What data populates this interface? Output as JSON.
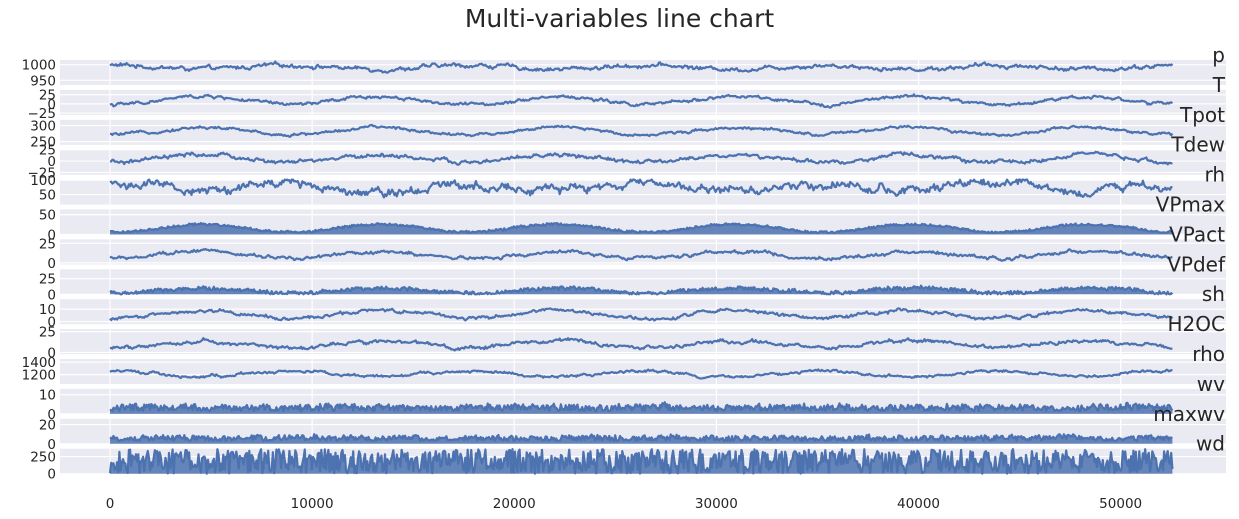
{
  "chart_data": {
    "type": "line",
    "title": "Multi-variables line chart",
    "line_color": "#4c72b0",
    "panel_color": "#eaeaf2",
    "grid": true,
    "xlim": [
      0,
      52560
    ],
    "x_ticks": [
      0,
      10000,
      20000,
      30000,
      40000,
      50000
    ],
    "n_points": 52560,
    "panels": [
      {
        "name": "p",
        "ylim": [
          935,
          1015
        ],
        "y_ticks": [
          1000,
          950
        ],
        "base": 992,
        "amp_seasonal": -6,
        "noise": 6,
        "fill": false
      },
      {
        "name": "T",
        "ylim": [
          -30,
          38
        ],
        "y_ticks": [
          25,
          0,
          -25
        ],
        "base": 9,
        "amp_seasonal": 11,
        "noise": 4,
        "fill": false
      },
      {
        "name": "Tpot",
        "ylim": [
          240,
          318
        ],
        "y_ticks": [
          300,
          250
        ],
        "base": 283,
        "amp_seasonal": 11,
        "noise": 4,
        "fill": false
      },
      {
        "name": "Tdew",
        "ylim": [
          -30,
          25
        ],
        "y_ticks": [
          25,
          0,
          -25
        ],
        "base": 5,
        "amp_seasonal": 8,
        "noise": 4,
        "fill": false
      },
      {
        "name": "rh",
        "ylim": [
          15,
          102
        ],
        "y_ticks": [
          100,
          50
        ],
        "base": 76,
        "amp_seasonal": -12,
        "noise": 14,
        "fill": false
      },
      {
        "name": "VPmax",
        "ylim": [
          0,
          63
        ],
        "y_ticks": [
          50,
          0
        ],
        "base": 13,
        "amp_seasonal": 10,
        "noise": 4,
        "fill": true
      },
      {
        "name": "VPact",
        "ylim": [
          -2,
          30
        ],
        "y_ticks": [
          25,
          0
        ],
        "base": 10,
        "amp_seasonal": 4,
        "noise": 2,
        "fill": false
      },
      {
        "name": "VPdef",
        "ylim": [
          0,
          40
        ],
        "y_ticks": [
          25,
          0
        ],
        "base": 3,
        "amp_seasonal": 4,
        "noise": 4,
        "fill": true
      },
      {
        "name": "sh",
        "ylim": [
          -2,
          18
        ],
        "y_ticks": [
          10,
          0
        ],
        "base": 6,
        "amp_seasonal": 3,
        "noise": 1.2,
        "fill": false
      },
      {
        "name": "H2OC",
        "ylim": [
          -2,
          28
        ],
        "y_ticks": [
          25,
          0
        ],
        "base": 10,
        "amp_seasonal": 4,
        "noise": 2,
        "fill": false
      },
      {
        "name": "rho",
        "ylim": [
          1050,
          1450
        ],
        "y_ticks": [
          1400,
          1200
        ],
        "base": 1215,
        "amp_seasonal": -45,
        "noise": 20,
        "fill": false
      },
      {
        "name": "wv",
        "ylim": [
          0,
          13
        ],
        "y_ticks": [
          10,
          0
        ],
        "base": 1.5,
        "amp_seasonal": 0,
        "noise": 2.5,
        "fill": true
      },
      {
        "name": "maxwv",
        "ylim": [
          0,
          26
        ],
        "y_ticks": [
          20,
          0
        ],
        "base": 3,
        "amp_seasonal": 0,
        "noise": 4,
        "fill": true
      },
      {
        "name": "wd",
        "ylim": [
          0,
          365
        ],
        "y_ticks": [
          250,
          0
        ],
        "base": 180,
        "amp_seasonal": 0,
        "noise": 180,
        "fill": true
      }
    ]
  }
}
